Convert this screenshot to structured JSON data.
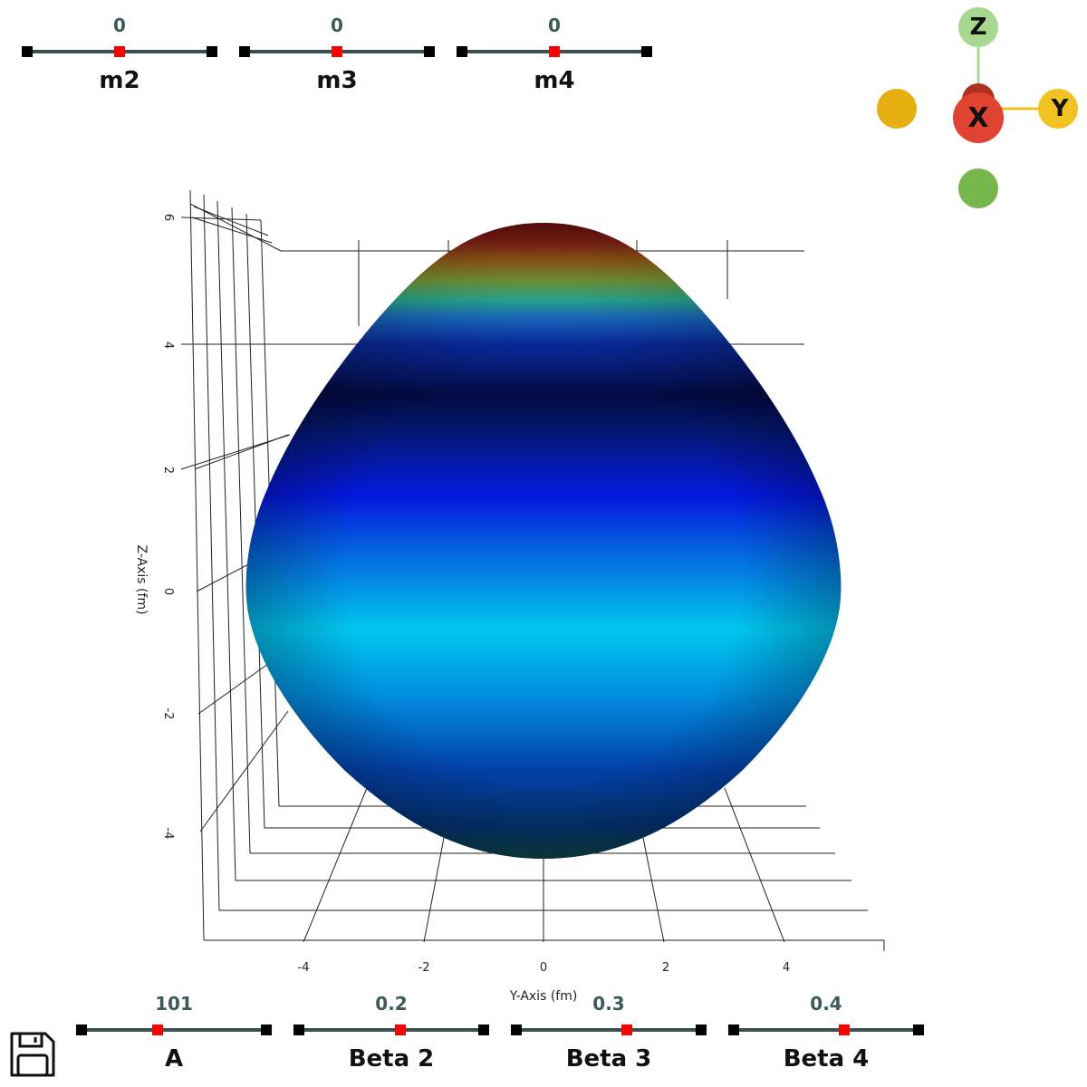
{
  "top_sliders": [
    {
      "label": "m2",
      "value": "0",
      "position": 0.5
    },
    {
      "label": "m3",
      "value": "0",
      "position": 0.5
    },
    {
      "label": "m4",
      "value": "0",
      "position": 0.5
    }
  ],
  "bottom_sliders": [
    {
      "label": "A",
      "value": "101",
      "position": 0.41
    },
    {
      "label": "Beta 2",
      "value": "0.2",
      "position": 0.55
    },
    {
      "label": "Beta 3",
      "value": "0.3",
      "position": 0.6
    },
    {
      "label": "Beta 4",
      "value": "0.4",
      "position": 0.6
    }
  ],
  "axes": {
    "y_label": "Y-Axis (fm)",
    "z_label": "Z-Axis (fm)",
    "y_ticks": [
      "-4",
      "-2",
      "0",
      "2",
      "4"
    ],
    "z_ticks": [
      "6",
      "4",
      "2",
      "0",
      "-2",
      "-4"
    ]
  },
  "orientation_widget": {
    "z_label": "Z",
    "x_label": "X",
    "y_label": "Y",
    "colors": {
      "x": "#e0432f",
      "y": "#f0c020",
      "z": "#a8d890"
    }
  },
  "icons": {
    "save": "save-icon"
  },
  "colormap": "jet"
}
